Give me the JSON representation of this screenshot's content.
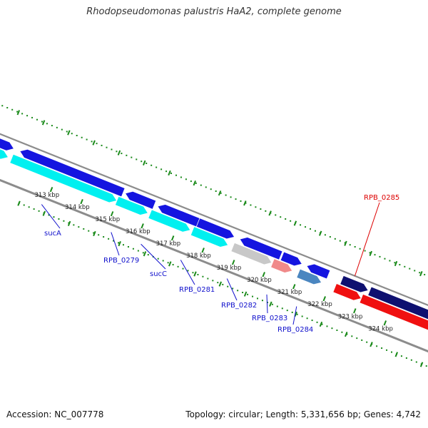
{
  "title": "Rhodopseudomonas palustris HaA2, complete genome",
  "footer": {
    "accession_label": "Accession:",
    "accession": "NC_007778",
    "topology_label": "Topology:",
    "topology": "circular",
    "length_label": "Length:",
    "length": "5,331,656 bp",
    "genes_label": "Genes:",
    "genes": "4,742"
  },
  "colors": {
    "backbone": "#8c8c8c",
    "gene_blue": "#1515e0",
    "gene_cyan": "#00f0f0",
    "gene_gray": "#c8c8c8",
    "gene_pink": "#f08a8a",
    "gene_steel": "#4a86c0",
    "gene_navy": "#0e1070",
    "gene_red": "#f01010",
    "tick_green": "#1a8a1a",
    "label_blue": "#1010cc",
    "label_red": "#dd0000"
  },
  "scale": {
    "kbp_ticks": [
      "313 kbp",
      "314 kbp",
      "315 kbp",
      "316 kbp",
      "317 kbp",
      "318 kbp",
      "319 kbp",
      "320 kbp",
      "321 kbp",
      "322 kbp",
      "323 kbp",
      "324 kbp"
    ]
  },
  "gene_labels": [
    {
      "name": "sucA",
      "color": "label_blue"
    },
    {
      "name": "RPB_0279",
      "color": "label_blue"
    },
    {
      "name": "sucC",
      "color": "label_blue"
    },
    {
      "name": "RPB_0281",
      "color": "label_blue"
    },
    {
      "name": "RPB_0282",
      "color": "label_blue"
    },
    {
      "name": "RPB_0283",
      "color": "label_blue"
    },
    {
      "name": "RPB_0284",
      "color": "label_blue"
    },
    {
      "name": "RPB_0285",
      "color": "label_red"
    }
  ]
}
